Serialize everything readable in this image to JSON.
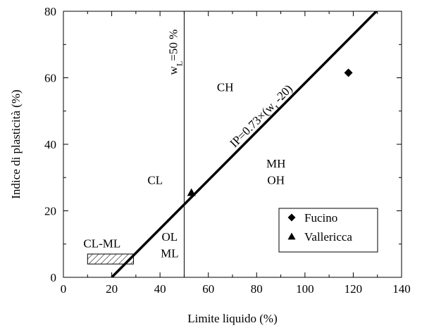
{
  "chart_data": {
    "type": "scatter",
    "title": "",
    "xlabel": "Limite liquido (%)",
    "ylabel": "Indice di plasticità (%)",
    "xlim": [
      0,
      140
    ],
    "ylim": [
      0,
      80
    ],
    "xticks": [
      "0",
      "20",
      "40",
      "60",
      "80",
      "100",
      "120",
      "140"
    ],
    "yticks": [
      "0",
      "20",
      "40",
      "60",
      "80"
    ],
    "grid": false,
    "legend_position": "bottom-right",
    "series": [
      {
        "name": "Fucino",
        "marker": "diamond",
        "points": [
          [
            118,
            61.5
          ]
        ]
      },
      {
        "name": "Vallericca",
        "marker": "triangle",
        "points": [
          [
            53,
            25.5
          ]
        ]
      }
    ],
    "a_line": {
      "label_base": "IP=0.73×(w",
      "label_sub": "L",
      "label_tail": "-20)",
      "x_start": 20,
      "x_end": 130
    },
    "vertical_line": {
      "x": 50,
      "label_base": "w",
      "label_sub": "L",
      "label_tail": "=50 %"
    },
    "hatched_zone": {
      "x_start": 10,
      "x_end": 29,
      "y_start": 4,
      "y_end": 7
    },
    "region_labels": [
      {
        "text": "CH",
        "x": 67,
        "y": 56
      },
      {
        "text": "CL",
        "x": 38,
        "y": 28
      },
      {
        "text": "MH",
        "x": 88,
        "y": 33
      },
      {
        "text": "OH",
        "x": 88,
        "y": 28
      },
      {
        "text": "CL-ML",
        "x": 16,
        "y": 9
      },
      {
        "text": "OL",
        "x": 44,
        "y": 11
      },
      {
        "text": "ML",
        "x": 44,
        "y": 6
      }
    ]
  }
}
